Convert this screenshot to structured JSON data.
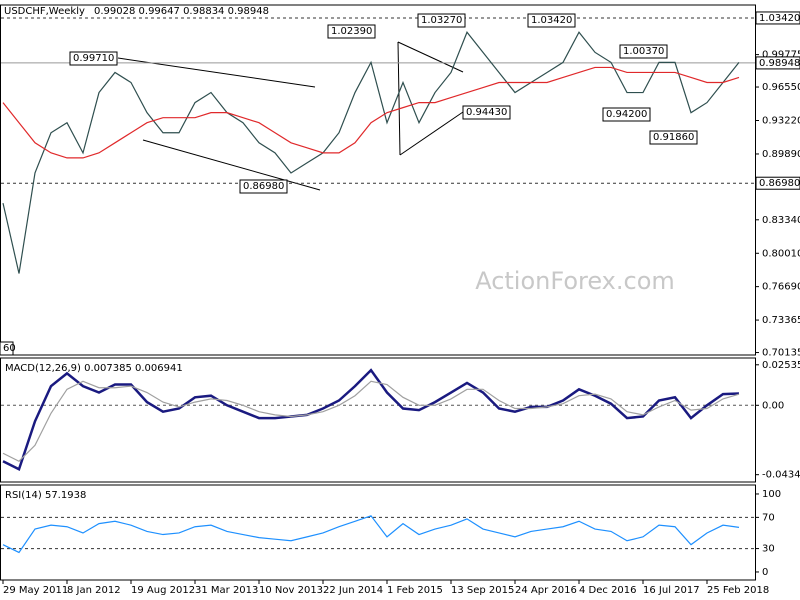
{
  "chart_data": {
    "type": "line",
    "symbol": "USDCHF,Weekly",
    "quote": "0.99028 0.99647 0.98834 0.98948",
    "watermark": "ActionForex.com",
    "categories": [
      "29 May 2011",
      null,
      null,
      null,
      "8 Jan 2012",
      null,
      null,
      null,
      "19 Aug 2012",
      null,
      null,
      null,
      "31 Mar 2013",
      null,
      null,
      null,
      "10 Nov 2013",
      null,
      null,
      null,
      "22 Jun 2014",
      null,
      null,
      null,
      "1 Feb 2015",
      null,
      null,
      null,
      "13 Sep 2015",
      null,
      null,
      null,
      "24 Apr 2016",
      null,
      null,
      null,
      "4 Dec 2016",
      null,
      null,
      null,
      "16 Jul 2017",
      null,
      null,
      null,
      "25 Feb 2018",
      null,
      null
    ],
    "panels": [
      {
        "ylim": [
          0.6989,
          1.0471
        ],
        "yticks": [
          0.99775,
          {
            "value": 0.9655,
            "label": "0.96550"
          },
          {
            "value": 0.9322,
            "label": "0.93220"
          },
          {
            "value": 0.8989,
            "label": "0.89890"
          },
          {
            "value": 0.8334,
            "label": "0.83340"
          },
          {
            "value": 0.8001,
            "label": "0.80010"
          },
          {
            "value": 0.7669,
            "label": "0.76690"
          },
          0.73365,
          0.70135
        ],
        "levels": [
          {
            "value": 1.0342,
            "label": "1.03420"
          },
          {
            "value": 0.8698,
            "label": "0.86980"
          }
        ],
        "last_price": {
          "value": 0.98948,
          "label": "0.98948"
        },
        "annotations": [
          "0.99710",
          "1.02390",
          "1.03270",
          "1.03420",
          "1.00370",
          "0.94430",
          "0.94200",
          "0.91860",
          "0.86980",
          "60"
        ],
        "series": [
          {
            "name": "Close",
            "color": "#2f4f4f",
            "values": [
              0.85,
              0.78,
              0.88,
              0.92,
              0.93,
              0.9,
              0.96,
              0.98,
              0.97,
              0.94,
              0.92,
              0.92,
              0.95,
              0.96,
              0.94,
              0.93,
              0.91,
              0.9,
              0.88,
              0.89,
              0.9,
              0.92,
              0.96,
              0.99,
              0.93,
              0.97,
              0.93,
              0.96,
              0.98,
              1.02,
              1.0,
              0.98,
              0.96,
              0.97,
              0.98,
              0.99,
              1.02,
              1.0,
              0.99,
              0.96,
              0.96,
              0.99,
              0.99,
              0.94,
              0.95,
              0.97,
              0.99
            ]
          },
          {
            "name": "MA",
            "color": "#e0292b",
            "values": [
              0.95,
              0.93,
              0.91,
              0.9,
              0.895,
              0.895,
              0.9,
              0.91,
              0.92,
              0.93,
              0.935,
              0.935,
              0.935,
              0.94,
              0.94,
              0.935,
              0.93,
              0.92,
              0.91,
              0.905,
              0.9,
              0.9,
              0.91,
              0.93,
              0.94,
              0.945,
              0.95,
              0.95,
              0.955,
              0.96,
              0.965,
              0.97,
              0.97,
              0.97,
              0.97,
              0.975,
              0.98,
              0.985,
              0.985,
              0.98,
              0.98,
              0.98,
              0.98,
              0.975,
              0.97,
              0.97,
              0.975
            ]
          }
        ]
      },
      {
        "title": "MACD(12,26,9) 0.007385 0.006941",
        "ylim": [
          -0.048,
          0.0296
        ],
        "yticks": [
          0.025353,
          {
            "value": 0,
            "label": "0.00"
          },
          -0.043419
        ],
        "series": [
          {
            "name": "MACD",
            "color": "#1a1a80",
            "values": [
              -0.035,
              -0.04,
              -0.01,
              0.012,
              0.02,
              0.012,
              0.008,
              0.013,
              0.013,
              0.002,
              -0.004,
              -0.002,
              0.005,
              0.006,
              0.0,
              -0.004,
              -0.008,
              -0.008,
              -0.007,
              -0.006,
              -0.002,
              0.003,
              0.012,
              0.022,
              0.008,
              -0.002,
              -0.003,
              0.002,
              0.008,
              0.014,
              0.008,
              -0.002,
              -0.004,
              -0.001,
              -0.001,
              0.003,
              0.01,
              0.006,
              0.001,
              -0.008,
              -0.007,
              0.003,
              0.005,
              -0.008,
              0.0,
              0.007,
              0.007385
            ]
          },
          {
            "name": "Signal",
            "color": "#a0a0a0",
            "values": [
              -0.03,
              -0.035,
              -0.025,
              -0.005,
              0.01,
              0.015,
              0.011,
              0.011,
              0.012,
              0.008,
              0.002,
              -0.001,
              0.002,
              0.004,
              0.003,
              0.0,
              -0.004,
              -0.006,
              -0.007,
              -0.006,
              -0.004,
              0.0,
              0.006,
              0.015,
              0.013,
              0.005,
              0.0,
              0.0,
              0.004,
              0.01,
              0.01,
              0.003,
              -0.002,
              -0.002,
              -0.001,
              0.001,
              0.006,
              0.007,
              0.004,
              -0.004,
              -0.006,
              -0.001,
              0.003,
              -0.003,
              -0.002,
              0.004,
              0.006941
            ]
          }
        ]
      },
      {
        "title": "RSI(14) 57.1938",
        "ylim": [
          -10.3,
          111.5
        ],
        "yticks": [
          100,
          70,
          30,
          0
        ],
        "levels": [
          70,
          30
        ],
        "series": [
          {
            "name": "RSI",
            "color": "#1e90ff",
            "values": [
              35,
              25,
              55,
              60,
              58,
              50,
              62,
              65,
              60,
              52,
              48,
              50,
              58,
              60,
              52,
              48,
              44,
              42,
              40,
              45,
              50,
              58,
              65,
              72,
              45,
              62,
              48,
              55,
              60,
              68,
              55,
              50,
              45,
              52,
              55,
              58,
              65,
              55,
              52,
              40,
              45,
              60,
              58,
              35,
              50,
              60,
              57.1938
            ]
          }
        ]
      }
    ]
  }
}
